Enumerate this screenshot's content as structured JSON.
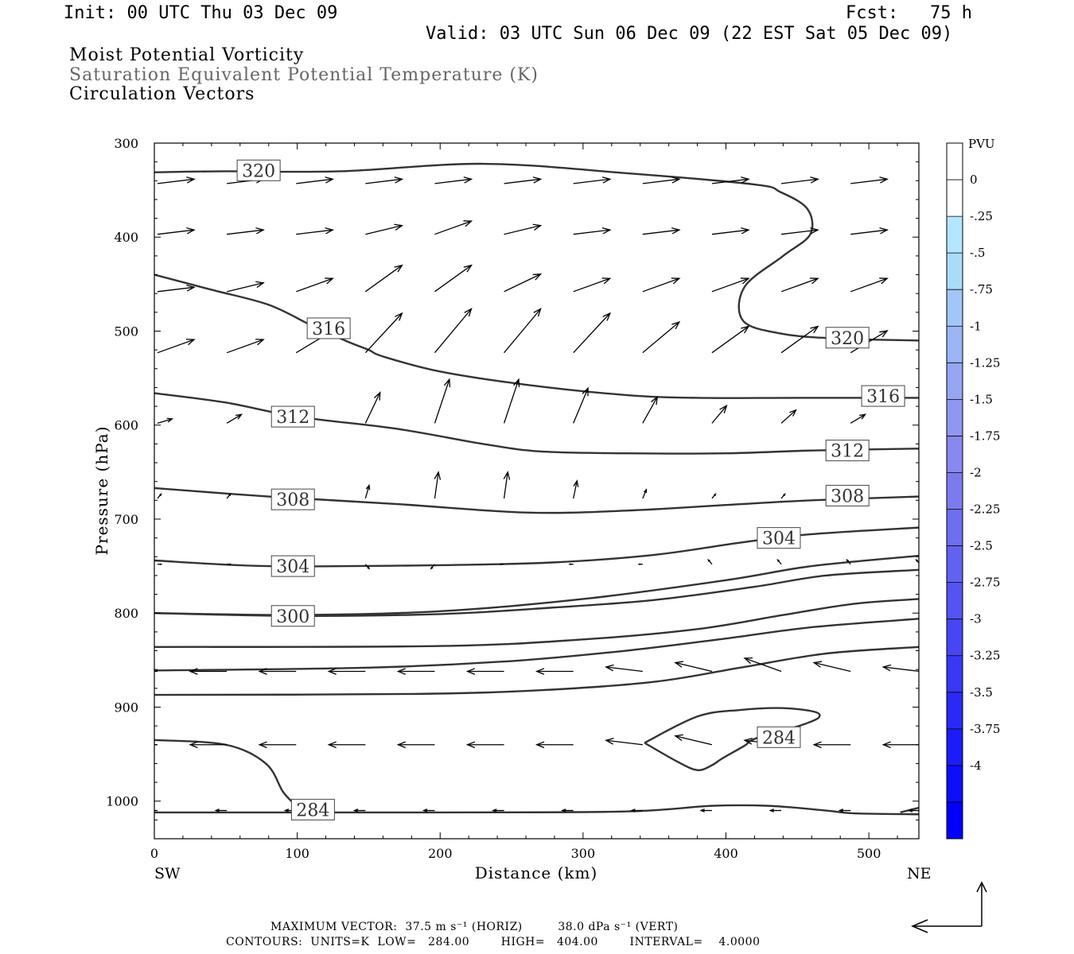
{
  "header": {
    "init": "Init: 00 UTC Thu 03 Dec 09",
    "fcst": "Fcst:   75 h",
    "valid": "Valid: 03 UTC Sun 06 Dec 09 (22 EST Sat 05 Dec 09)"
  },
  "titles": {
    "line1": "Moist Potential Vorticity",
    "line2": "Saturation Equivalent Potential Temperature (K)",
    "line3": "Circulation Vectors"
  },
  "footer": {
    "line1": "MAXIMUM VECTOR:  37.5 m s⁻¹ (HORIZ)         38.0 dPa s⁻¹ (VERT)",
    "line2": "CONTOURS:  UNITS=K  LOW=   284.00        HIGH=   404.00        INTERVAL=    4.0000"
  },
  "colors": {
    "contour": "#333333",
    "vector": "#000000",
    "frame": "#000000"
  },
  "chart_data": {
    "type": "cross-section",
    "xlabel": "Distance (km)",
    "ylabel": "Pressure (hPa)",
    "x_endpoints": {
      "left": "SW",
      "right": "NE"
    },
    "xlim": [
      0,
      535
    ],
    "ylim": [
      1040,
      300
    ],
    "x_ticks": [
      0,
      100,
      200,
      300,
      400,
      500
    ],
    "y_ticks": [
      300,
      400,
      500,
      600,
      700,
      800,
      900,
      1000
    ],
    "colorbar": {
      "unit": "PVU",
      "levels": [
        0.25,
        0,
        -0.25,
        -0.5,
        -0.75,
        -1,
        -1.25,
        -1.5,
        -1.75,
        -2,
        -2.25,
        -2.5,
        -2.75,
        -3,
        -3.25,
        -3.5,
        -3.75,
        -4,
        -4.25
      ],
      "labels": [
        "0",
        "-.25",
        "-.5",
        "-.75",
        "-1",
        "-1.25",
        "-1.5",
        "-1.75",
        "-2",
        "-2.25",
        "-2.5",
        "-2.75",
        "-3",
        "-3.25",
        "-3.5",
        "-3.75",
        "-4"
      ],
      "colors": [
        "#ffffff",
        "#ffffff",
        "#b3e6ff",
        "#aadcfa",
        "#a2c6f7",
        "#9cb5f5",
        "#96a6f3",
        "#8f97f1",
        "#8888ef",
        "#7b7bee",
        "#6e6ef0",
        "#6262f1",
        "#5454f2",
        "#4646f3",
        "#3838f5",
        "#2a2af6",
        "#1c1cf8",
        "#0e0efa",
        "#0000fc"
      ]
    },
    "contours": [
      {
        "label": "320",
        "points": [
          [
            0,
            331
          ],
          [
            50,
            330
          ],
          [
            130,
            330
          ],
          [
            230,
            322
          ],
          [
            330,
            332
          ],
          [
            420,
            344
          ],
          [
            438,
            352
          ],
          [
            457,
            370
          ],
          [
            459,
            397
          ],
          [
            440,
            420
          ],
          [
            413,
            453
          ],
          [
            412,
            489
          ],
          [
            440,
            503
          ],
          [
            480,
            508
          ],
          [
            535,
            510
          ]
        ],
        "label_positions": [
          [
            73,
            329
          ],
          [
            485,
            507
          ]
        ]
      },
      {
        "label": "316",
        "points": [
          [
            0,
            440
          ],
          [
            40,
            456
          ],
          [
            80,
            472
          ],
          [
            110,
            494
          ],
          [
            135,
            511
          ],
          [
            150,
            520
          ],
          [
            160,
            527
          ],
          [
            200,
            543
          ],
          [
            260,
            557
          ],
          [
            330,
            568
          ],
          [
            380,
            571
          ],
          [
            450,
            571
          ],
          [
            535,
            571
          ]
        ],
        "label_positions": [
          [
            122,
            497
          ],
          [
            510,
            569
          ]
        ]
      },
      {
        "label": "312",
        "points": [
          [
            0,
            566
          ],
          [
            50,
            576
          ],
          [
            100,
            591
          ],
          [
            170,
            604
          ],
          [
            230,
            620
          ],
          [
            270,
            628
          ],
          [
            330,
            630
          ],
          [
            400,
            630
          ],
          [
            460,
            627
          ],
          [
            535,
            625
          ]
        ],
        "label_positions": [
          [
            97,
            591
          ],
          [
            485,
            627
          ]
        ]
      },
      {
        "label": "308",
        "points": [
          [
            0,
            667
          ],
          [
            80,
            676
          ],
          [
            170,
            684
          ],
          [
            260,
            693
          ],
          [
            330,
            691
          ],
          [
            400,
            685
          ],
          [
            460,
            680
          ],
          [
            535,
            676
          ]
        ],
        "label_positions": [
          [
            97,
            679
          ],
          [
            485,
            675
          ]
        ]
      },
      {
        "label": "304",
        "points": [
          [
            0,
            744
          ],
          [
            80,
            750
          ],
          [
            200,
            749
          ],
          [
            280,
            746
          ],
          [
            350,
            738
          ],
          [
            410,
            725
          ],
          [
            460,
            716
          ],
          [
            535,
            709
          ]
        ],
        "label_positions": [
          [
            97,
            750
          ],
          [
            437,
            720
          ]
        ]
      },
      {
        "label": "",
        "points": [
          [
            0,
            800
          ],
          [
            100,
            802
          ],
          [
            200,
            798
          ],
          [
            300,
            785
          ],
          [
            400,
            765
          ],
          [
            460,
            750
          ],
          [
            535,
            739
          ]
        ],
        "label_positions": []
      },
      {
        "label": "300",
        "points": [
          [
            0,
            800
          ],
          [
            100,
            803
          ],
          [
            200,
            801
          ],
          [
            280,
            794
          ],
          [
            350,
            786
          ],
          [
            420,
            772
          ],
          [
            470,
            760
          ],
          [
            535,
            754
          ]
        ],
        "label_positions": [
          [
            97,
            803
          ]
        ]
      },
      {
        "label": "",
        "points": [
          [
            0,
            836
          ],
          [
            200,
            835
          ],
          [
            300,
            828
          ],
          [
            380,
            817
          ],
          [
            440,
            802
          ],
          [
            490,
            790
          ],
          [
            535,
            785
          ]
        ],
        "label_positions": []
      },
      {
        "label": "",
        "points": [
          [
            0,
            861
          ],
          [
            150,
            858
          ],
          [
            250,
            851
          ],
          [
            330,
            840
          ],
          [
            400,
            827
          ],
          [
            460,
            815
          ],
          [
            535,
            806
          ]
        ],
        "label_positions": []
      },
      {
        "label": "",
        "points": [
          [
            0,
            887
          ],
          [
            180,
            886
          ],
          [
            270,
            882
          ],
          [
            350,
            873
          ],
          [
            410,
            858
          ],
          [
            470,
            843
          ],
          [
            535,
            836
          ]
        ],
        "label_positions": []
      },
      {
        "label": "284",
        "points": [
          [
            0,
            935
          ],
          [
            50,
            940
          ],
          [
            78,
            960
          ],
          [
            90,
            990
          ],
          [
            98,
            1003
          ],
          [
            104,
            1012
          ]
        ],
        "label_positions": [
          [
            111,
            1009
          ]
        ]
      },
      {
        "label": "",
        "points": [
          [
            0,
            1012
          ],
          [
            200,
            1012
          ],
          [
            330,
            1011
          ],
          [
            390,
            1005
          ],
          [
            430,
            1005
          ],
          [
            470,
            1010
          ],
          [
            490,
            1013
          ],
          [
            535,
            1014
          ]
        ],
        "label_positions": []
      },
      {
        "label": "284",
        "points": [
          [
            343,
            938
          ],
          [
            380,
            910
          ],
          [
            410,
            903
          ],
          [
            440,
            901
          ],
          [
            462,
            905
          ],
          [
            465,
            911
          ],
          [
            455,
            918
          ],
          [
            440,
            925
          ],
          [
            427,
            930
          ],
          [
            417,
            936
          ],
          [
            413,
            941
          ],
          [
            397,
            955
          ],
          [
            390,
            962
          ],
          [
            380,
            967
          ],
          [
            366,
            958
          ],
          [
            343,
            938
          ]
        ],
        "label_positions": [
          [
            437,
            932
          ]
        ]
      },
      {
        "label": "",
        "points": [
          [
            522,
            1012
          ],
          [
            535,
            1007
          ]
        ],
        "label_positions": []
      }
    ],
    "vector_grid": {
      "x": [
        0,
        48.5,
        97,
        145.5,
        194,
        242.5,
        291,
        339.5,
        388,
        436.5,
        485,
        533.5
      ],
      "pressure": [
        343,
        397,
        458,
        523,
        598,
        678,
        748,
        862,
        940,
        1010
      ]
    },
    "vectors_u": [
      [
        1.0,
        1.0,
        1.0,
        1.0,
        1.0,
        1.0,
        1.0,
        1.0,
        1.0,
        1.0,
        1.0,
        1.0
      ],
      [
        1.0,
        1.0,
        1.0,
        1.0,
        1.0,
        1.0,
        1.0,
        1.0,
        1.0,
        1.0,
        1.0,
        1.0
      ],
      [
        1.0,
        1.0,
        1.0,
        1.0,
        1.0,
        1.0,
        1.0,
        1.0,
        1.0,
        1.0,
        1.0,
        1.0
      ],
      [
        1.0,
        1.0,
        1.0,
        1.0,
        1.0,
        1.0,
        1.0,
        1.0,
        1.0,
        1.0,
        1.0,
        1.0
      ],
      [
        0.4,
        0.4,
        0.4,
        0.4,
        0.4,
        0.4,
        0.4,
        0.4,
        0.4,
        0.4,
        0.4,
        0.4
      ],
      [
        0.1,
        0.1,
        0.1,
        0.1,
        0.1,
        0.1,
        0.1,
        0.1,
        0.1,
        0.1,
        0.1,
        0.1
      ],
      [
        0.1,
        0.1,
        0.1,
        0.1,
        -0.1,
        -0.1,
        -0.1,
        -0.1,
        -0.1,
        -0.1,
        -0.1,
        -0.1
      ],
      [
        -1.0,
        -1.0,
        -1.0,
        -1.0,
        -1.0,
        -1.0,
        -1.0,
        -1.0,
        -1.0,
        -1.0,
        -1.0,
        -1.0
      ],
      [
        -1.0,
        -1.0,
        -1.0,
        -1.0,
        -1.0,
        -1.0,
        -1.0,
        -1.0,
        -1.0,
        -1.0,
        -1.0,
        -1.0
      ],
      [
        -0.3,
        -0.3,
        -0.3,
        -0.3,
        -0.3,
        -0.3,
        -0.3,
        -0.3,
        -0.3,
        -0.3,
        -0.3,
        -0.3
      ]
    ],
    "vectors_w": [
      [
        0.1,
        0.1,
        0.1,
        0.1,
        0.1,
        0.1,
        0.1,
        0.1,
        0.1,
        0.1,
        0.1,
        0.1
      ],
      [
        0.1,
        0.1,
        0.1,
        0.2,
        0.3,
        0.2,
        0.1,
        0.1,
        0.1,
        0.1,
        0.1,
        0.1
      ],
      [
        0.1,
        0.2,
        0.3,
        0.6,
        0.6,
        0.4,
        0.3,
        0.3,
        0.3,
        0.3,
        0.3,
        0.3
      ],
      [
        0.3,
        0.3,
        0.5,
        0.9,
        1.0,
        1.0,
        0.9,
        0.7,
        0.6,
        0.6,
        0.5,
        0.4
      ],
      [
        0.1,
        0.2,
        0.2,
        0.7,
        1.0,
        1.0,
        0.8,
        0.6,
        0.4,
        0.3,
        0.2,
        0.2
      ],
      [
        0.1,
        0.1,
        0.1,
        0.3,
        0.6,
        0.6,
        0.4,
        0.2,
        0.1,
        0.1,
        0.1,
        0.1
      ],
      [
        0.0,
        0.0,
        0.0,
        -0.1,
        -0.1,
        0.0,
        0.0,
        0.0,
        0.1,
        0.1,
        0.1,
        0.1
      ],
      [
        0.0,
        0.0,
        0.0,
        0.0,
        0.0,
        0.0,
        0.0,
        0.1,
        0.2,
        0.3,
        0.2,
        0.1
      ],
      [
        0.0,
        0.0,
        0.0,
        0.0,
        0.0,
        0.0,
        0.0,
        0.1,
        0.2,
        0.1,
        0.0,
        0.0
      ],
      [
        0.0,
        0.0,
        0.0,
        0.0,
        0.0,
        0.0,
        0.0,
        0.0,
        0.0,
        0.0,
        0.0,
        0.0
      ]
    ],
    "grid": false
  }
}
